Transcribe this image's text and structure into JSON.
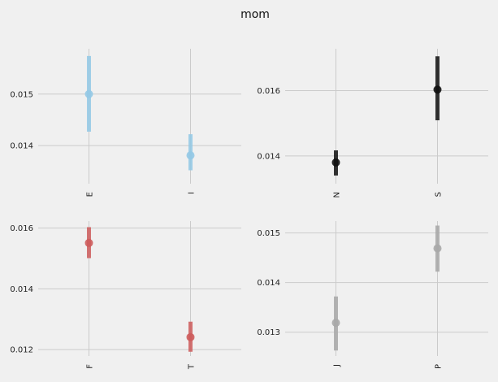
{
  "figure": {
    "title": "mom",
    "background": "#f0f0f0",
    "grid_color": "#cbcbcb"
  },
  "chart_data": [
    {
      "type": "pointplot",
      "categories": [
        "E",
        "I"
      ],
      "values": [
        0.015,
        0.01381
      ],
      "ci_low": [
        0.01427,
        0.01352
      ],
      "ci_high": [
        0.01574,
        0.01422
      ],
      "color": "#93c9e6",
      "ylim": [
        0.01326,
        0.01588
      ],
      "yticks": [
        0.014,
        0.015
      ],
      "ytick_labels": [
        "0.014",
        "0.015"
      ],
      "grid": true
    },
    {
      "type": "pointplot",
      "categories": [
        "N",
        "S"
      ],
      "values": [
        0.0138,
        0.01603
      ],
      "ci_low": [
        0.0134,
        0.01509
      ],
      "ci_high": [
        0.01417,
        0.01705
      ],
      "color": "#111111",
      "ylim": [
        0.01315,
        0.01728
      ],
      "yticks": [
        0.014,
        0.016
      ],
      "ytick_labels": [
        "0.014",
        "0.016"
      ],
      "grid": true
    },
    {
      "type": "pointplot",
      "categories": [
        "F",
        "T"
      ],
      "values": [
        0.01551,
        0.01241
      ],
      "ci_low": [
        0.01501,
        0.01193
      ],
      "ci_high": [
        0.01603,
        0.01292
      ],
      "color": "#cd5c5c",
      "ylim": [
        0.01179,
        0.01623
      ],
      "yticks": [
        0.012,
        0.014,
        0.016
      ],
      "ytick_labels": [
        "0.012",
        "0.014",
        "0.016"
      ],
      "grid": true
    },
    {
      "type": "pointplot",
      "categories": [
        "J",
        "P"
      ],
      "values": [
        0.01319,
        0.01469
      ],
      "ci_low": [
        0.01263,
        0.01422
      ],
      "ci_high": [
        0.01372,
        0.01515
      ],
      "color": "#a8a8a8",
      "ylim": [
        0.01252,
        0.01524
      ],
      "yticks": [
        0.013,
        0.014,
        0.015
      ],
      "ytick_labels": [
        "0.013",
        "0.014",
        "0.015"
      ],
      "grid": true
    }
  ]
}
